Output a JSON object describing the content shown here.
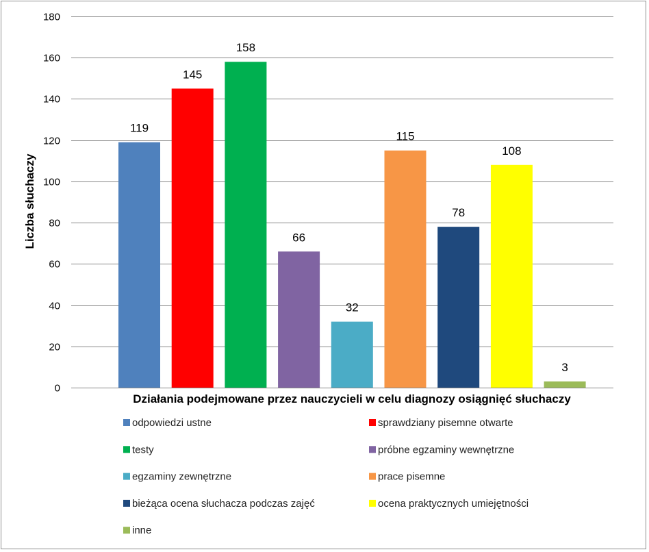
{
  "chart_data": {
    "type": "bar",
    "title": "",
    "xlabel": "Działania podejmowane przez nauczycieli w celu diagnozy osiągnięć słuchaczy",
    "ylabel": "Liczba słuchaczy",
    "ylim": [
      0,
      180
    ],
    "yticks": [
      0,
      20,
      40,
      60,
      80,
      100,
      120,
      140,
      160,
      180
    ],
    "grid": true,
    "legend_position": "bottom",
    "series": [
      {
        "name": "odpowiedzi ustne",
        "value": 119,
        "color": "#4F81BD"
      },
      {
        "name": "sprawdziany pisemne otwarte",
        "value": 145,
        "color": "#FF0000"
      },
      {
        "name": "testy",
        "value": 158,
        "color": "#00B050"
      },
      {
        "name": "próbne egzaminy wewnętrzne",
        "value": 66,
        "color": "#8064A2"
      },
      {
        "name": "egzaminy zewnętrzne",
        "value": 32,
        "color": "#4BACC6"
      },
      {
        "name": "prace pisemne",
        "value": 115,
        "color": "#F79646"
      },
      {
        "name": "bieżąca ocena słuchacza podczas zajęć",
        "value": 78,
        "color": "#1F497D"
      },
      {
        "name": "ocena praktycznych umiejętności",
        "value": 108,
        "color": "#FFFF00"
      },
      {
        "name": "inne",
        "value": 3,
        "color": "#9BBB59"
      }
    ]
  }
}
